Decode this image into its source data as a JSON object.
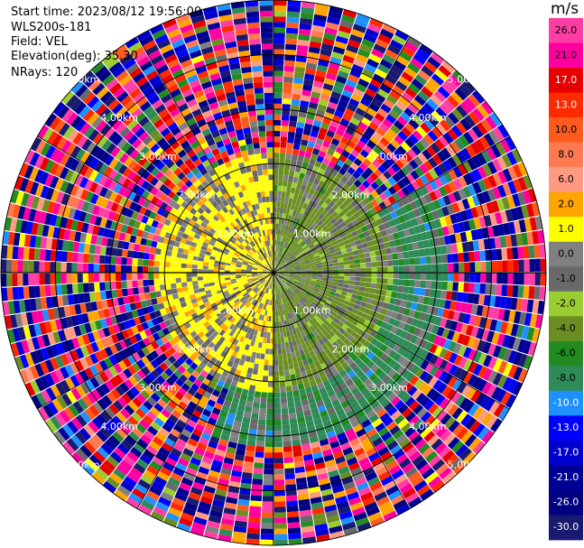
{
  "meta": {
    "start_time": "Start time: 2023/08/12 19:56:00",
    "instrument": "WLS200s-181",
    "field": "Field: VEL",
    "elevation": "Elevation(deg): 35.30",
    "nrays": "NRays: 120"
  },
  "chart_data": {
    "type": "heatmap",
    "projection": "polar-ppi",
    "field": "VEL",
    "units": "m/s",
    "n_rays": 120,
    "range_km_max": 5.0,
    "range_rings_km": [
      1,
      2,
      3,
      4,
      5
    ],
    "range_ring_labels": [
      "1.00km",
      "2.00km",
      "3.00km",
      "4.00km",
      "5.00km"
    ],
    "spokes_deg": [
      0,
      30,
      60,
      90,
      120,
      150,
      180,
      210,
      240,
      270,
      300,
      330
    ],
    "colorbar": {
      "title": "m/s",
      "ticks": [
        "26.0",
        "21.0",
        "17.0",
        "13.0",
        "10.0",
        "8.0",
        "6.0",
        "2.0",
        "1.0",
        "0.0",
        "-1.0",
        "-2.0",
        "-4.0",
        "-6.0",
        "-8.0",
        "-10.0",
        "-13.0",
        "-17.0",
        "-21.0",
        "-26.0",
        "-30.0"
      ],
      "bins": [
        {
          "min": 26,
          "max": 30,
          "color": "#ff3ea5"
        },
        {
          "min": 21,
          "max": 26,
          "color": "#ff00a0"
        },
        {
          "min": 17,
          "max": 21,
          "color": "#e60000"
        },
        {
          "min": 13,
          "max": 17,
          "color": "#ff2a00"
        },
        {
          "min": 10,
          "max": 13,
          "color": "#ff5a1e"
        },
        {
          "min": 8,
          "max": 10,
          "color": "#ff7a50"
        },
        {
          "min": 6,
          "max": 8,
          "color": "#ff9a82"
        },
        {
          "min": 2,
          "max": 6,
          "color": "#ffa500"
        },
        {
          "min": 1,
          "max": 2,
          "color": "#ffff00"
        },
        {
          "min": 0,
          "max": 1,
          "color": "#808080"
        },
        {
          "min": -1,
          "max": 0,
          "color": "#696969"
        },
        {
          "min": -2,
          "max": -1,
          "color": "#9acd32"
        },
        {
          "min": -4,
          "max": -2,
          "color": "#6b8e23"
        },
        {
          "min": -6,
          "max": -4,
          "color": "#228b22"
        },
        {
          "min": -8,
          "max": -6,
          "color": "#2e8b57"
        },
        {
          "min": -10,
          "max": -8,
          "color": "#1e90ff"
        },
        {
          "min": -13,
          "max": -10,
          "color": "#0000ff"
        },
        {
          "min": -17,
          "max": -13,
          "color": "#0000cd"
        },
        {
          "min": -21,
          "max": -17,
          "color": "#000096"
        },
        {
          "min": -26,
          "max": -21,
          "color": "#000080"
        },
        {
          "min": -30,
          "max": -26,
          "color": "#191970"
        }
      ]
    },
    "regions": [
      {
        "range_km": [
          0,
          2.2
        ],
        "azimuth_deg": [
          180,
          360
        ],
        "dominant_ms": 1.5
      },
      {
        "range_km": [
          0,
          2.2
        ],
        "azimuth_deg": [
          0,
          180
        ],
        "dominant_ms": -2.5
      },
      {
        "range_km": [
          2.2,
          3.2
        ],
        "azimuth_deg": [
          60,
          200
        ],
        "dominant_ms": -6.5
      },
      {
        "range_km": [
          3.2,
          5.0
        ],
        "azimuth_deg": [
          0,
          360
        ],
        "dominant_ms": "noise"
      }
    ]
  }
}
